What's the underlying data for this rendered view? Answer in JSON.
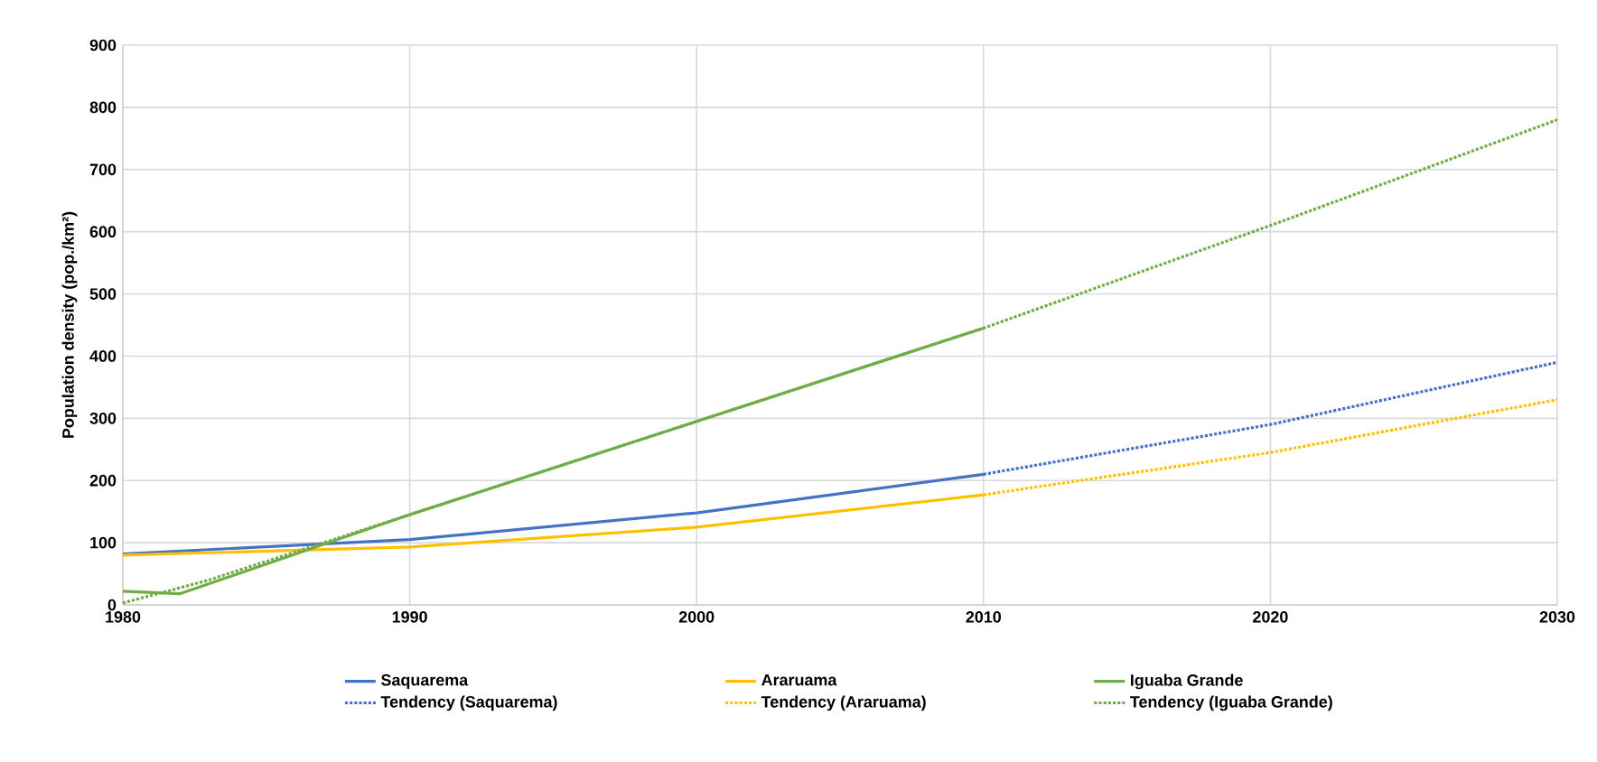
{
  "chart_data": {
    "type": "line",
    "ylabel": "Population density (pop./km²)",
    "xlim": [
      1980,
      2030
    ],
    "xticks": [
      1980,
      1990,
      2000,
      2010,
      2020,
      2030
    ],
    "ylim": [
      0,
      900
    ],
    "yticks": [
      0,
      100,
      200,
      300,
      400,
      500,
      600,
      700,
      800,
      900
    ],
    "grid": true,
    "legend": "bottom",
    "marker": "none",
    "series": [
      {
        "name": "Saquarema",
        "color": "#4472c4",
        "line_style": "solid",
        "x": [
          1980,
          1990,
          2000,
          2010
        ],
        "values": [
          82,
          105,
          148,
          210
        ]
      },
      {
        "name": "Araruama",
        "color": "#ffc000",
        "line_style": "solid",
        "x": [
          1980,
          1990,
          2000,
          2010
        ],
        "values": [
          80,
          93,
          125,
          177
        ]
      },
      {
        "name": "Iguaba Grande",
        "color": "#70ad47",
        "line_style": "solid",
        "x": [
          1980,
          1982,
          1990,
          2000,
          2010
        ],
        "values": [
          22,
          18,
          145,
          295,
          445
        ]
      },
      {
        "name": "Tendency (Saquarema)",
        "color": "#4472c4",
        "line_style": "dotted",
        "x": [
          2010,
          2020,
          2030
        ],
        "values": [
          210,
          290,
          390
        ]
      },
      {
        "name": "Tendency (Araruama)",
        "color": "#ffc000",
        "line_style": "dotted",
        "x": [
          2010,
          2020,
          2030
        ],
        "values": [
          177,
          245,
          330
        ]
      },
      {
        "name": "Tendency (Iguaba Grande)",
        "color": "#70ad47",
        "line_style": "dotted",
        "x": [
          1980,
          1983,
          2010,
          2020,
          2030
        ],
        "values": [
          3,
          40,
          445,
          610,
          780
        ]
      }
    ]
  }
}
